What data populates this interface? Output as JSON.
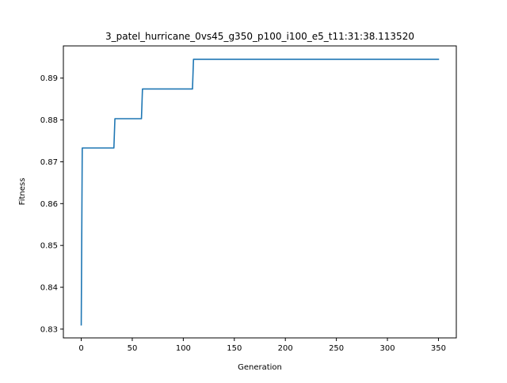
{
  "chart_data": {
    "type": "line",
    "title": "3_patel_hurricane_0vs45_g350_p100_i100_e5_t11:31:38.113520",
    "xlabel": "Generation",
    "ylabel": "Fitness",
    "xlim": [
      -17.5,
      367.5
    ],
    "ylim": [
      0.8279,
      0.8977
    ],
    "x_ticks": [
      0,
      50,
      100,
      150,
      200,
      250,
      300,
      350
    ],
    "y_ticks": [
      0.83,
      0.84,
      0.85,
      0.86,
      0.87,
      0.88,
      0.89
    ],
    "x_tick_labels": [
      "0",
      "50",
      "100",
      "150",
      "200",
      "250",
      "300",
      "350"
    ],
    "y_tick_labels": [
      "0.83",
      "0.84",
      "0.85",
      "0.86",
      "0.87",
      "0.88",
      "0.89"
    ],
    "grid": false,
    "legend": "none",
    "series": [
      {
        "color": "#1f77b4",
        "x": [
          0,
          1,
          32,
          33,
          59,
          60,
          109,
          110,
          350
        ],
        "y": [
          0.831,
          0.8733,
          0.8733,
          0.8803,
          0.8803,
          0.8874,
          0.8874,
          0.8945,
          0.8945
        ]
      }
    ]
  }
}
